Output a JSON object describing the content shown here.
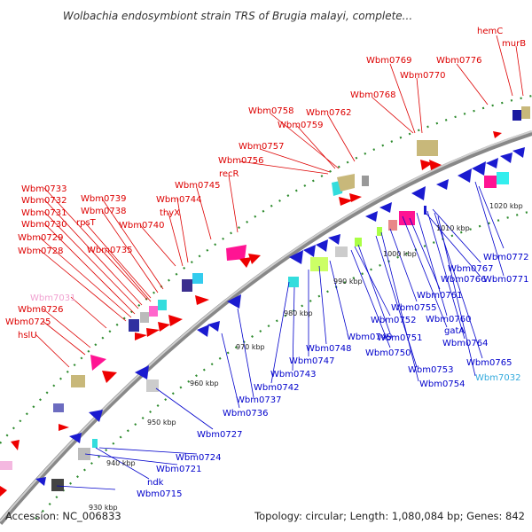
{
  "title": "Wolbachia endosymbiont strain TRS of Brugia malayi, complete...",
  "footer": {
    "accession": "Accession: NC_006833",
    "summary": "Topology: circular; Length: 1,080,084 bp; Genes: 842"
  },
  "colors": {
    "forward_label": "#dd0000",
    "reverse_label": "#0000cc",
    "rna_label_pink": "#f0a0d0",
    "rna_label_cyan": "#33aadd",
    "backbone": "#999999",
    "tick_dots": "#2e8b2e"
  },
  "kbp_ticks": [
    "930 kbp",
    "940 kbp",
    "950 kbp",
    "960 kbp",
    "970 kbp",
    "980 kbp",
    "990 kbp",
    "1000 kbp",
    "1010 kbp",
    "1020 kbp"
  ],
  "forward_labels": [
    {
      "text": "hemC"
    },
    {
      "text": "murB"
    },
    {
      "text": "Wbm0769"
    },
    {
      "text": "Wbm0776"
    },
    {
      "text": "Wbm0770"
    },
    {
      "text": "Wbm0768"
    },
    {
      "text": "Wbm0758"
    },
    {
      "text": "Wbm0762"
    },
    {
      "text": "Wbm0759"
    },
    {
      "text": "Wbm0757"
    },
    {
      "text": "Wbm0756"
    },
    {
      "text": "Wbm0745"
    },
    {
      "text": "recR"
    },
    {
      "text": "Wbm0733"
    },
    {
      "text": "Wbm0739"
    },
    {
      "text": "Wbm0744"
    },
    {
      "text": "Wbm0732"
    },
    {
      "text": "Wbm0738"
    },
    {
      "text": "thyX"
    },
    {
      "text": "Wbm0731"
    },
    {
      "text": "rpsT"
    },
    {
      "text": "Wbm0740"
    },
    {
      "text": "Wbm0730"
    },
    {
      "text": "Wbm0729"
    },
    {
      "text": "Wbm0735"
    },
    {
      "text": "Wbm0728"
    },
    {
      "text": "Wbm7031",
      "pink": true
    },
    {
      "text": "Wbm0726"
    },
    {
      "text": "Wbm0725"
    },
    {
      "text": "hslU"
    }
  ],
  "reverse_labels": [
    {
      "text": "1020 kbp"
    },
    {
      "text": "Wbm0772"
    },
    {
      "text": "Wbm0767"
    },
    {
      "text": "Wbm0771"
    },
    {
      "text": "Wbm0766"
    },
    {
      "text": "Wbm0761"
    },
    {
      "text": "Wbm0755"
    },
    {
      "text": "Wbm0760"
    },
    {
      "text": "Wbm0752"
    },
    {
      "text": "gatA"
    },
    {
      "text": "Wbm0764"
    },
    {
      "text": "Wbm0749"
    },
    {
      "text": "Wbm0751"
    },
    {
      "text": "Wbm0748"
    },
    {
      "text": "Wbm0750"
    },
    {
      "text": "Wbm0765"
    },
    {
      "text": "Wbm0747"
    },
    {
      "text": "Wbm0753"
    },
    {
      "text": "Wbm7032",
      "cyan": true
    },
    {
      "text": "Wbm0743"
    },
    {
      "text": "Wbm0754"
    },
    {
      "text": "Wbm0742"
    },
    {
      "text": "Wbm0737"
    },
    {
      "text": "Wbm0736"
    },
    {
      "text": "Wbm0727"
    },
    {
      "text": "Wbm0724"
    },
    {
      "text": "Wbm0721"
    },
    {
      "text": "ndk"
    },
    {
      "text": "Wbm0715"
    }
  ]
}
